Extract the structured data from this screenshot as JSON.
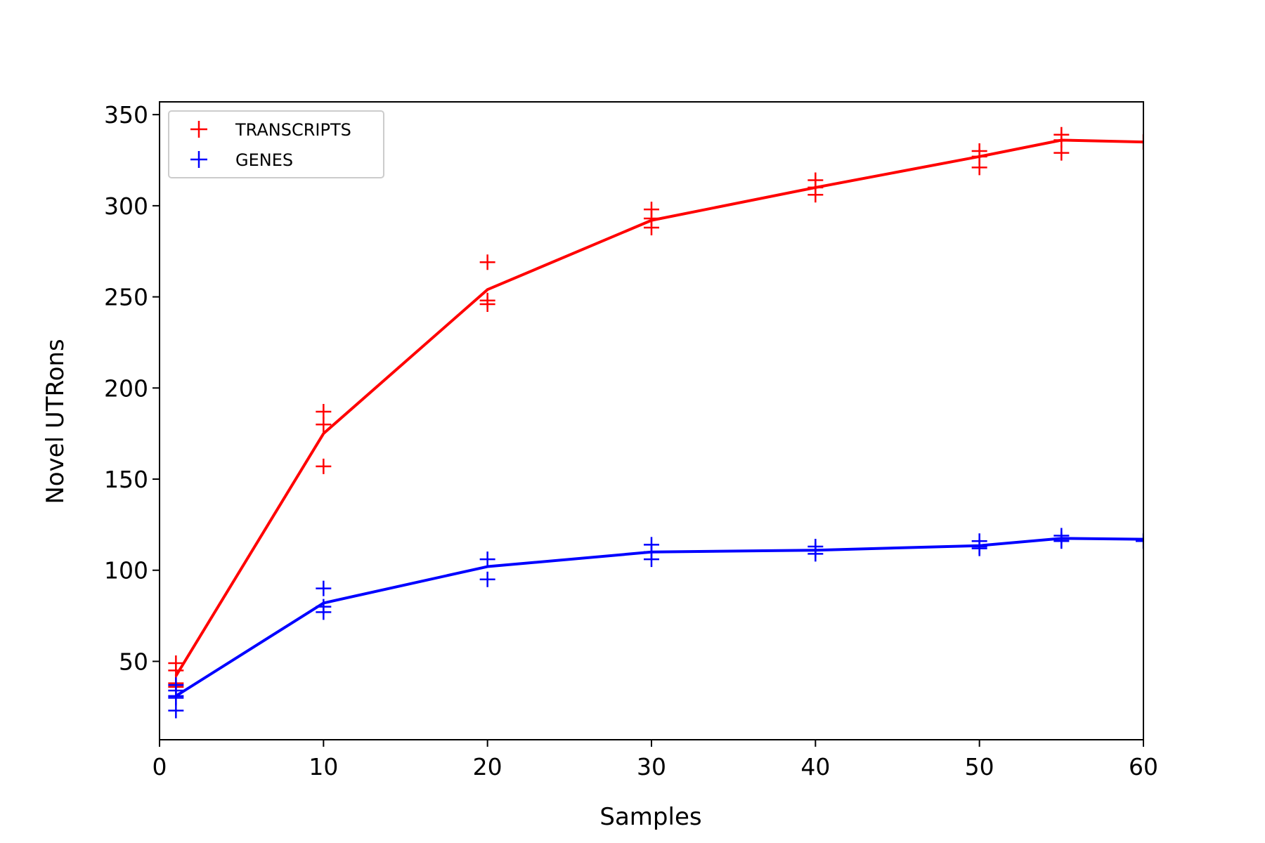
{
  "chart_data": {
    "type": "line",
    "xlabel": "Samples",
    "ylabel": "Novel UTRons",
    "xlim": [
      0,
      60
    ],
    "ylim": [
      7,
      357
    ],
    "xticks": [
      0,
      10,
      20,
      30,
      40,
      50,
      60
    ],
    "yticks": [
      50,
      100,
      150,
      200,
      250,
      300,
      350
    ],
    "grid": false,
    "legend_position": "top-left",
    "series": [
      {
        "name": "TRANSCRIPTS",
        "color": "#ff0000",
        "marker": "plus",
        "line_x": [
          1,
          10,
          20,
          30,
          40,
          50,
          55,
          60
        ],
        "line_y": [
          42,
          175,
          254,
          292,
          310,
          327,
          336,
          335
        ],
        "points": [
          [
            1,
            49
          ],
          [
            1,
            45
          ],
          [
            1,
            38
          ],
          [
            1,
            36
          ],
          [
            10,
            187
          ],
          [
            10,
            180
          ],
          [
            10,
            157
          ],
          [
            20,
            269
          ],
          [
            20,
            248
          ],
          [
            20,
            246
          ],
          [
            30,
            298
          ],
          [
            30,
            293
          ],
          [
            30,
            288
          ],
          [
            40,
            314
          ],
          [
            40,
            310
          ],
          [
            40,
            306
          ],
          [
            50,
            330
          ],
          [
            50,
            327
          ],
          [
            50,
            321
          ],
          [
            55,
            339
          ],
          [
            55,
            336
          ],
          [
            55,
            329
          ],
          [
            60,
            335
          ]
        ]
      },
      {
        "name": "GENES",
        "color": "#0000ff",
        "marker": "plus",
        "line_x": [
          1,
          10,
          20,
          30,
          40,
          50,
          55,
          60
        ],
        "line_y": [
          31,
          82,
          102,
          110,
          111,
          113.5,
          117.5,
          117
        ],
        "points": [
          [
            1,
            37
          ],
          [
            1,
            34
          ],
          [
            1,
            31
          ],
          [
            1,
            30
          ],
          [
            1,
            23
          ],
          [
            10,
            90
          ],
          [
            10,
            80
          ],
          [
            10,
            77
          ],
          [
            20,
            106
          ],
          [
            20,
            95
          ],
          [
            30,
            114
          ],
          [
            30,
            110
          ],
          [
            30,
            106
          ],
          [
            40,
            113
          ],
          [
            40,
            111
          ],
          [
            40,
            109
          ],
          [
            50,
            116
          ],
          [
            50,
            113
          ],
          [
            50,
            112
          ],
          [
            55,
            119
          ],
          [
            55,
            117
          ],
          [
            55,
            116
          ],
          [
            60,
            116
          ]
        ]
      }
    ]
  }
}
